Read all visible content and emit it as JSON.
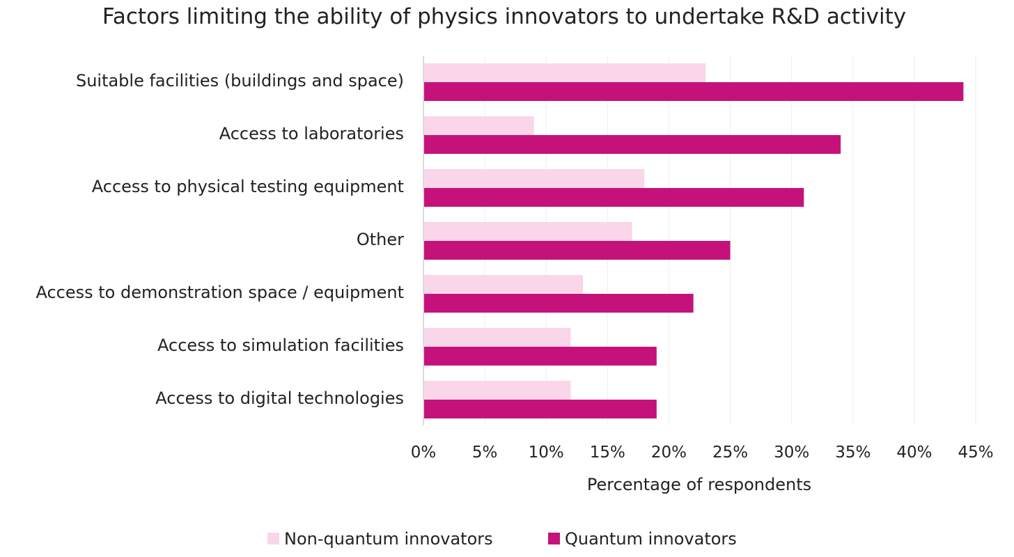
{
  "chart_data": {
    "type": "bar",
    "orientation": "horizontal",
    "title": "Factors limiting the ability of physics innovators to undertake R&D activity",
    "xlabel": "Percentage of respondents",
    "ylabel": "",
    "categories": [
      "Suitable facilities (buildings and space)",
      "Access to laboratories",
      "Access to physical testing equipment",
      "Other",
      "Access to demonstration space / equipment",
      "Access to simulation facilities",
      "Access to digital technologies"
    ],
    "series": [
      {
        "name": "Non-quantum innovators",
        "color": "#f9d6ea",
        "values": [
          23,
          9,
          18,
          17,
          13,
          12,
          12
        ]
      },
      {
        "name": "Quantum innovators",
        "color": "#c5127a",
        "values": [
          44,
          34,
          31,
          25,
          22,
          19,
          19
        ]
      }
    ],
    "xlim": [
      0,
      45
    ],
    "ticks": [
      0,
      5,
      10,
      15,
      20,
      25,
      30,
      35,
      40,
      45
    ],
    "tick_labels": [
      "0%",
      "5%",
      "10%",
      "15%",
      "20%",
      "25%",
      "30%",
      "35%",
      "40%",
      "45%"
    ],
    "grid": true,
    "legend_position": "bottom"
  }
}
